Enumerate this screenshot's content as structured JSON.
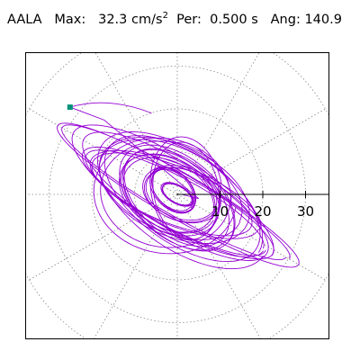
{
  "header": {
    "station": "AALA",
    "max_label": "Max:",
    "max_value": "32.3",
    "max_unit": "cm/s",
    "max_unit_exp": "2",
    "per_label": "Per:",
    "per_value": "0.500 s",
    "ang_label": "Ang:",
    "ang_value": "140.9"
  },
  "chart_data": {
    "type": "scatter",
    "subtype": "polar-orbit",
    "title": "AALA   Max:  32.3 cm/s2  Per:  0.500 s  Ang: 140.9",
    "xlabel": "",
    "ylabel": "",
    "radial_ticks": [
      10,
      20,
      30
    ],
    "radial_tick_labels": [
      "10",
      "20",
      "30"
    ],
    "radial_rings": [
      10,
      20,
      30,
      40
    ],
    "spoke_angles_deg": [
      0,
      30,
      60,
      90,
      120,
      150,
      180,
      210,
      240,
      270,
      300,
      330
    ],
    "grid": true,
    "xlim": [
      -35,
      35
    ],
    "ylim": [
      -33.6,
      33.6
    ],
    "series": [
      {
        "color": "#9400d3",
        "max_point": [
          -25.1,
          20.4
        ],
        "max_marker_color": "#00937a",
        "loops": [
          {
            "cx": 0,
            "cy": 0,
            "a": 31,
            "b": 5,
            "angle": -30,
            "turns": 2
          },
          {
            "cx": -1,
            "cy": 0,
            "a": 26,
            "b": 8,
            "angle": -32,
            "turns": 2
          },
          {
            "cx": 1,
            "cy": -1,
            "a": 22,
            "b": 11,
            "angle": -35,
            "turns": 2
          },
          {
            "cx": -1,
            "cy": 1,
            "a": 18,
            "b": 10,
            "angle": -25,
            "turns": 2
          },
          {
            "cx": 0,
            "cy": -1,
            "a": 15,
            "b": 9,
            "angle": -40,
            "turns": 3
          },
          {
            "cx": -2,
            "cy": 0,
            "a": 12,
            "b": 8,
            "angle": -30,
            "turns": 3
          },
          {
            "cx": 1,
            "cy": 0,
            "a": 9,
            "b": 6,
            "angle": -20,
            "turns": 3
          },
          {
            "cx": -1,
            "cy": 1,
            "a": 6,
            "b": 4,
            "angle": -45,
            "turns": 4
          },
          {
            "cx": 0,
            "cy": 0,
            "a": 4,
            "b": 2,
            "angle": -30,
            "turns": 5
          },
          {
            "cx": 2,
            "cy": 1,
            "a": 8,
            "b": 12,
            "angle": 10,
            "turns": 2
          },
          {
            "cx": -3,
            "cy": 0,
            "a": 16,
            "b": 13,
            "angle": -10,
            "turns": 2
          },
          {
            "cx": 0,
            "cy": -2,
            "a": 24,
            "b": 6,
            "angle": -28,
            "turns": 2
          },
          {
            "cx": -1,
            "cy": 0,
            "a": 21,
            "b": 7,
            "angle": -22,
            "turns": 2
          }
        ]
      }
    ]
  }
}
